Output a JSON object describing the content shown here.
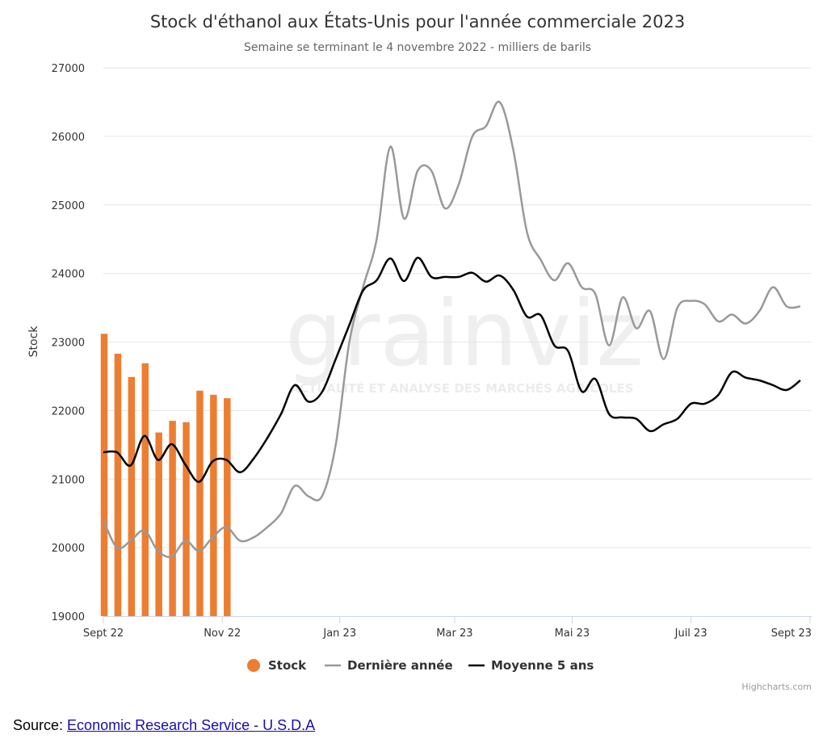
{
  "chart_data": {
    "type": "bar+line",
    "title": "Stock d'éthanol aux États-Unis pour l'année commerciale 2023",
    "subtitle": "Semaine se terminant le 4 novembre 2022 - milliers de barils",
    "ylabel": "Stock",
    "ylim": [
      19000,
      27000
    ],
    "yticks": [
      19000,
      20000,
      21000,
      22000,
      23000,
      24000,
      25000,
      26000,
      27000
    ],
    "xlim": [
      0,
      51
    ],
    "xticks": [
      {
        "label": "Sept 22",
        "x": 0
      },
      {
        "label": "Nov 22",
        "x": 8.7
      },
      {
        "label": "Jan 23",
        "x": 17.3
      },
      {
        "label": "Mar 23",
        "x": 25.7
      },
      {
        "label": "Mai 23",
        "x": 34.3
      },
      {
        "label": "Juil 23",
        "x": 43
      },
      {
        "label": "Sept 23",
        "x": 51.7
      }
    ],
    "legend": "bottom-center",
    "grid": true,
    "watermark": {
      "word": "grainviz",
      "tagline": "ACTUALITÉ ET ANALYSE DES MARCHÉS AGRICOLES"
    },
    "credits": "Highcharts.com",
    "series": [
      {
        "name": "Stock",
        "type": "bar",
        "color": "#ed7d31",
        "x": [
          0,
          1,
          2,
          3,
          4,
          5,
          6,
          7,
          8,
          9
        ],
        "values": [
          23120,
          22830,
          22490,
          22690,
          21680,
          21850,
          21830,
          22290,
          22230,
          22180
        ]
      },
      {
        "name": "Dernière année",
        "type": "line",
        "color": "#999999",
        "x": [
          0,
          1,
          2,
          3,
          4,
          5,
          6,
          7,
          8,
          9,
          10,
          11,
          12,
          13,
          14,
          15,
          16,
          17,
          18,
          19,
          20,
          21,
          22,
          23,
          24,
          25,
          26,
          27,
          28,
          29,
          30,
          31,
          32,
          33,
          34,
          35,
          36,
          37,
          38,
          39,
          40,
          41,
          42,
          43,
          44,
          45,
          46,
          47,
          48,
          49,
          50,
          51
        ],
        "values": [
          20400,
          20000,
          20100,
          20250,
          19950,
          19870,
          20100,
          19950,
          20150,
          20300,
          20100,
          20150,
          20300,
          20500,
          20900,
          20750,
          20750,
          21500,
          23000,
          23800,
          24500,
          25850,
          24800,
          25500,
          25500,
          24950,
          25300,
          26000,
          26150,
          26500,
          25800,
          24600,
          24200,
          23900,
          24150,
          23800,
          23700,
          22950,
          23650,
          23200,
          23450,
          22750,
          23500,
          23600,
          23550,
          23300,
          23400,
          23270,
          23450,
          23800,
          23520,
          23520
        ]
      },
      {
        "name": "Moyenne 5 ans",
        "type": "line",
        "color": "#000000",
        "x": [
          0,
          1,
          2,
          3,
          4,
          5,
          6,
          7,
          8,
          9,
          10,
          11,
          12,
          13,
          14,
          15,
          16,
          17,
          18,
          19,
          20,
          21,
          22,
          23,
          24,
          25,
          26,
          27,
          28,
          29,
          30,
          31,
          32,
          33,
          34,
          35,
          36,
          37,
          38,
          39,
          40,
          41,
          42,
          43,
          44,
          45,
          46,
          47,
          48,
          49,
          50,
          51
        ],
        "values": [
          21390,
          21390,
          21200,
          21630,
          21280,
          21510,
          21210,
          20960,
          21260,
          21280,
          21100,
          21300,
          21600,
          21950,
          22370,
          22130,
          22270,
          22750,
          23250,
          23750,
          23900,
          24220,
          23890,
          24230,
          23950,
          23950,
          23950,
          24010,
          23880,
          23970,
          23760,
          23370,
          23390,
          22950,
          22870,
          22280,
          22460,
          21950,
          21900,
          21880,
          21700,
          21800,
          21880,
          22100,
          22100,
          22230,
          22560,
          22480,
          22440,
          22370,
          22300,
          22440
        ]
      }
    ],
    "source": {
      "prefix": "Source: ",
      "link_text": "Economic Research Service - U.S.D.A"
    }
  }
}
